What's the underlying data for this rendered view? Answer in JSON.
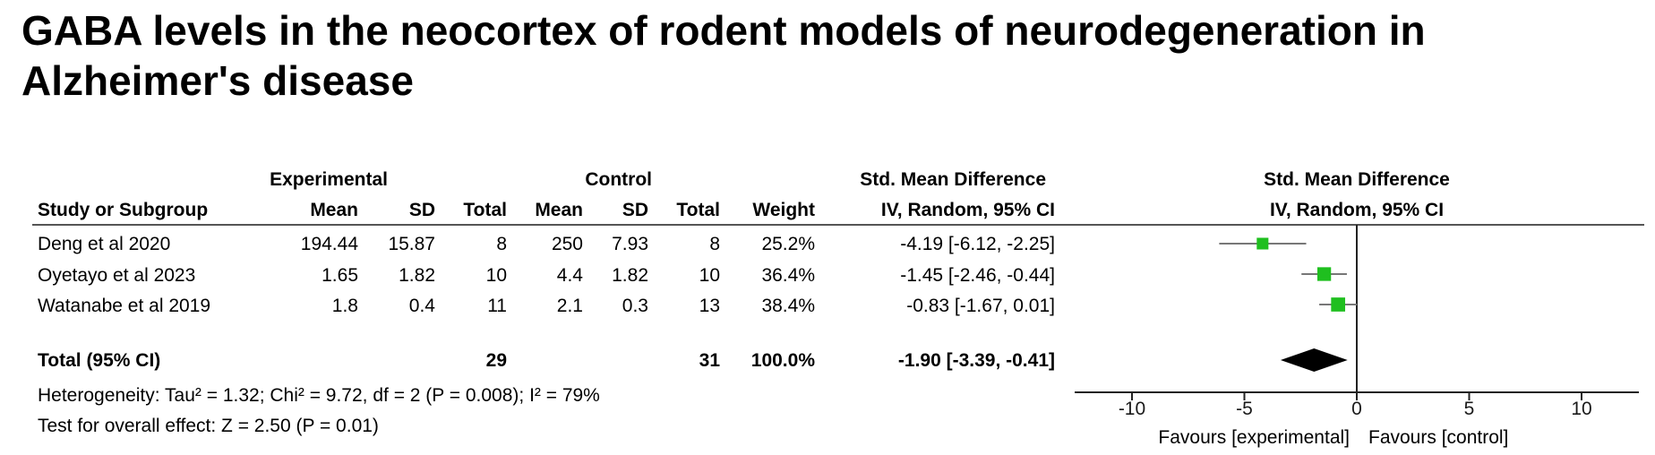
{
  "title": "GABA levels in the neocortex of rodent models of neurodegeneration in Alzheimer's disease",
  "table": {
    "group_experimental": "Experimental",
    "group_control": "Control",
    "smd_header_1": "Std. Mean Difference",
    "smd_header_2": "IV, Random, 95% CI",
    "col_study": "Study or Subgroup",
    "col_mean": "Mean",
    "col_sd": "SD",
    "col_total": "Total",
    "col_weight": "Weight",
    "rows": [
      {
        "study": "Deng et al 2020",
        "exp_mean": "194.44",
        "exp_sd": "15.87",
        "exp_total": "8",
        "ctrl_mean": "250",
        "ctrl_sd": "7.93",
        "ctrl_total": "8",
        "weight": "25.2%",
        "ci": "-4.19 [-6.12, -2.25]"
      },
      {
        "study": "Oyetayo et al 2023",
        "exp_mean": "1.65",
        "exp_sd": "1.82",
        "exp_total": "10",
        "ctrl_mean": "4.4",
        "ctrl_sd": "1.82",
        "ctrl_total": "10",
        "weight": "36.4%",
        "ci": "-1.45 [-2.46, -0.44]"
      },
      {
        "study": "Watanabe et al 2019",
        "exp_mean": "1.8",
        "exp_sd": "0.4",
        "exp_total": "11",
        "ctrl_mean": "2.1",
        "ctrl_sd": "0.3",
        "ctrl_total": "13",
        "weight": "38.4%",
        "ci": "-0.83 [-1.67, 0.01]"
      }
    ],
    "total": {
      "label": "Total (95% CI)",
      "exp_total": "29",
      "ctrl_total": "31",
      "weight": "100.0%",
      "ci": "-1.90 [-3.39, -0.41]"
    },
    "heterogeneity": "Heterogeneity: Tau² = 1.32; Chi² = 9.72, df = 2 (P = 0.008); I² = 79%",
    "overall_effect": "Test for overall effect: Z = 2.50 (P = 0.01)"
  },
  "plot": {
    "header_1": "Std. Mean Difference",
    "header_2": "IV, Random, 95% CI",
    "favours_left": "Favours [experimental]",
    "favours_right": "Favours [control]"
  },
  "colors": {
    "marker": "#1fbf1f",
    "summary": "#000000",
    "text": "#1a1a1a"
  },
  "chart_data": {
    "type": "forest",
    "xlim": [
      -10,
      10
    ],
    "xticks": [
      -10,
      -5,
      0,
      5,
      10
    ],
    "xtick_labels": [
      "-10",
      "-5",
      "0",
      "5",
      "10"
    ],
    "studies": [
      {
        "name": "Deng et al 2020",
        "estimate": -4.19,
        "ci_low": -6.12,
        "ci_high": -2.25,
        "weight": 25.2
      },
      {
        "name": "Oyetayo et al 2023",
        "estimate": -1.45,
        "ci_low": -2.46,
        "ci_high": -0.44,
        "weight": 36.4
      },
      {
        "name": "Watanabe et al 2019",
        "estimate": -0.83,
        "ci_low": -1.67,
        "ci_high": 0.01,
        "weight": 38.4
      }
    ],
    "pooled": {
      "estimate": -1.9,
      "ci_low": -3.39,
      "ci_high": -0.41
    }
  }
}
